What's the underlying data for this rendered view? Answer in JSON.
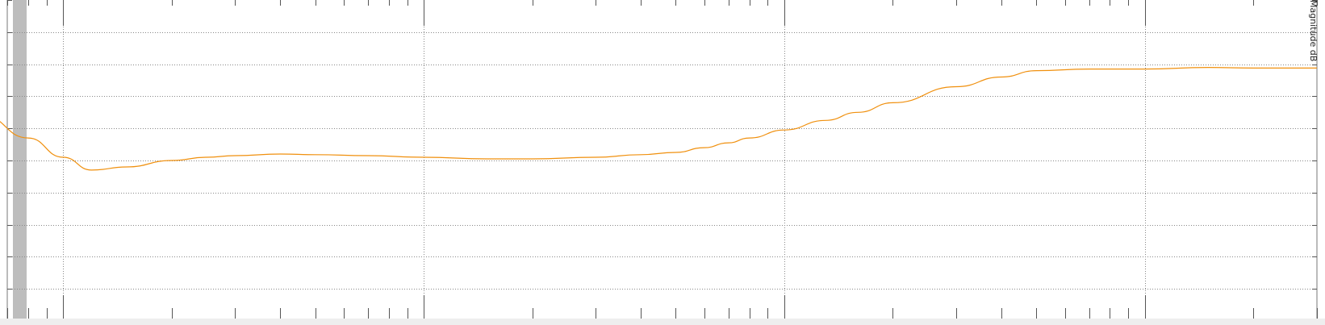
{
  "chart_data": {
    "type": "line",
    "title": "",
    "xlabel": "",
    "ylabel": "",
    "y2label": "Magnitude dB",
    "xscale": "log",
    "xlim": [
      0.7,
      3000
    ],
    "ylim": [
      -8,
      2
    ],
    "grid": true,
    "colors": {
      "series": "#f0900e",
      "band": "#bdbdbd",
      "grid": "#888888"
    },
    "series": [
      {
        "name": "",
        "x": [
          0.6,
          0.8,
          1,
          1.2,
          1.5,
          2,
          2.5,
          3,
          4,
          5,
          7,
          10,
          15,
          20,
          30,
          40,
          50,
          60,
          70,
          80,
          100,
          130,
          160,
          200,
          300,
          400,
          500,
          700,
          1000,
          1500,
          2000,
          2500,
          3000
        ],
        "y": [
          -1.6,
          -2.3,
          -2.9,
          -3.3,
          -3.2,
          -3.0,
          -2.9,
          -2.85,
          -2.8,
          -2.82,
          -2.85,
          -2.9,
          -2.95,
          -2.95,
          -2.9,
          -2.82,
          -2.75,
          -2.6,
          -2.45,
          -2.3,
          -2.05,
          -1.75,
          -1.5,
          -1.2,
          -0.7,
          -0.4,
          -0.2,
          -0.15,
          -0.15,
          -0.1,
          -0.12,
          -0.12,
          -0.12
        ]
      }
    ]
  }
}
